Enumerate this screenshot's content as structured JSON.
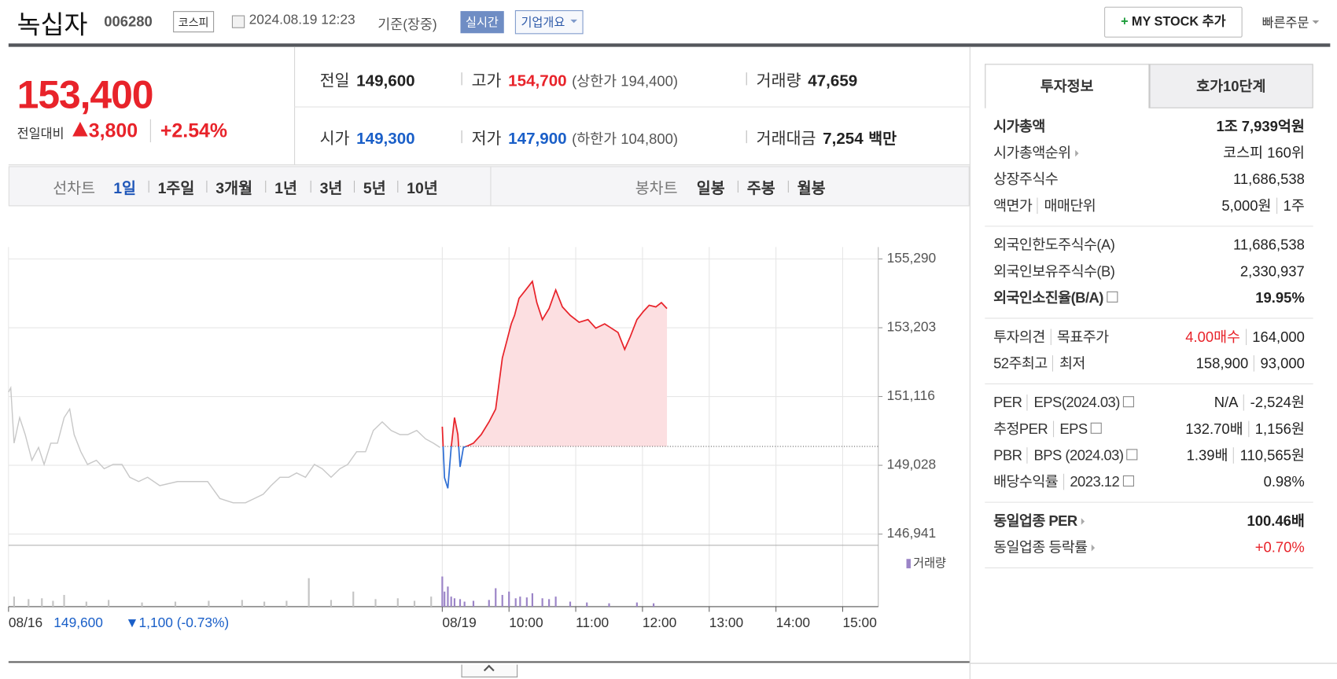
{
  "header": {
    "name": "녹십자",
    "code": "006280",
    "market": "코스피",
    "datetime": "2024.08.19 12:23",
    "basis": "기준(장중)",
    "realtime": "실시간",
    "company_info": "기업개요",
    "my_stock": "MY STOCK 추가",
    "quick_order": "빠른주문"
  },
  "quote": {
    "price": "153,400",
    "change_label": "전일대비",
    "change": "3,800",
    "change_pct": "+2.54%",
    "stats": [
      {
        "label": "전일",
        "value": "149,600"
      },
      {
        "label": "고가",
        "value": "154,700",
        "note": "(상한가 194,400)",
        "color": "#e8232a"
      },
      {
        "label": "거래량",
        "value": "47,659"
      },
      {
        "label": "시가",
        "value": "149,300",
        "color": "#1a5fc8"
      },
      {
        "label": "저가",
        "value": "147,900",
        "note": "(하한가 104,800)",
        "color": "#1a5fc8"
      },
      {
        "label": "거래대금",
        "value": "7,254",
        "unit": "백만"
      }
    ]
  },
  "chart_tabs": {
    "line_label": "선차트",
    "line": [
      "1일",
      "1주일",
      "3개월",
      "1년",
      "3년",
      "5년",
      "10년"
    ],
    "selected": 0,
    "candle_label": "봉차트",
    "candle": [
      "일봉",
      "주봉",
      "월봉"
    ]
  },
  "chart_data": {
    "type": "line",
    "baseline": 149600,
    "grid": true,
    "ylim": [
      146600,
      155650
    ],
    "yticks": [
      {
        "value": 155290,
        "label": "155,290"
      },
      {
        "value": 153203,
        "label": "153,203"
      },
      {
        "value": 151116,
        "label": "151,116"
      },
      {
        "value": 149028,
        "label": "149,028"
      },
      {
        "value": 146941,
        "label": "146,941"
      }
    ],
    "xlim": [
      -390,
      392
    ],
    "xticks": [
      {
        "value": -390,
        "label": "08/16"
      },
      {
        "value": 0,
        "label": "08/19"
      },
      {
        "value": 60,
        "label": "10:00"
      },
      {
        "value": 120,
        "label": "11:00"
      },
      {
        "value": 180,
        "label": "12:00"
      },
      {
        "value": 240,
        "label": "13:00"
      },
      {
        "value": 300,
        "label": "14:00"
      },
      {
        "value": 360,
        "label": "15:00"
      }
    ],
    "series": [
      {
        "color": "#c8c8c8",
        "x": [
          -390,
          -388,
          -385,
          -380,
          -375,
          -369,
          -363,
          -358,
          -352,
          -346,
          -340,
          -335,
          -331,
          -325,
          -319,
          -311,
          -304,
          -296,
          -288,
          -281,
          -273,
          -265,
          -254,
          -238,
          -223,
          -211,
          -200,
          -188,
          -177,
          -169,
          -161,
          -154,
          -146,
          -138,
          -131,
          -123,
          -115,
          -108,
          -100,
          -92,
          -85,
          -77,
          -69,
          -62,
          -54,
          -46,
          -38,
          -31,
          -23,
          -15,
          -8,
          -2
        ],
        "values": [
          151250,
          151380,
          149700,
          150475,
          149960,
          149180,
          149570,
          149055,
          149700,
          149700,
          150475,
          150735,
          149960,
          149440,
          149055,
          149180,
          148925,
          149055,
          149055,
          148665,
          148535,
          148665,
          148410,
          148535,
          148535,
          148535,
          148020,
          147890,
          147890,
          148020,
          148150,
          148410,
          148665,
          148665,
          148795,
          148665,
          149055,
          148925,
          148665,
          148925,
          149055,
          149440,
          149440,
          150085,
          150345,
          150085,
          149960,
          149960,
          150085,
          149830,
          149700,
          149570
        ]
      },
      {
        "color": "#e8232a",
        "color_down": "#2f6fd4",
        "fill": "#fcdfe1",
        "x": [
          0,
          2,
          5,
          8,
          11,
          14,
          16,
          19,
          23,
          28,
          35,
          42,
          48,
          51,
          54,
          58,
          62,
          65,
          69,
          75,
          81,
          85,
          90,
          96,
          102,
          108,
          115,
          123,
          131,
          138,
          146,
          152,
          158,
          164,
          169,
          175,
          181,
          186,
          192,
          197,
          202
        ],
        "values": [
          150200,
          148650,
          148330,
          149570,
          150475,
          149960,
          148980,
          149570,
          149620,
          149700,
          149960,
          150345,
          150735,
          151510,
          152285,
          152800,
          153320,
          153580,
          154095,
          154350,
          154610,
          153965,
          153450,
          153785,
          154350,
          153835,
          153580,
          153370,
          153450,
          153190,
          153320,
          153190,
          153060,
          152545,
          152930,
          153450,
          153705,
          153885,
          153835,
          153965,
          153785
        ]
      }
    ],
    "volume": {
      "name": "거래량",
      "color": "#9b84c7",
      "prior_color": "#c4c4c4",
      "ylim": [
        0,
        3000
      ],
      "x": [
        -385,
        -372,
        -360,
        -350,
        -340,
        -320,
        -300,
        -270,
        -240,
        -210,
        -180,
        -160,
        -140,
        -120,
        -100,
        -80,
        -60,
        -40,
        -25,
        -10,
        0,
        2,
        5,
        8,
        11,
        16,
        20,
        28,
        42,
        48,
        54,
        60,
        66,
        70,
        76,
        81,
        90,
        96,
        102,
        115,
        130,
        150,
        175,
        190
      ],
      "values": [
        600,
        450,
        500,
        350,
        700,
        300,
        400,
        250,
        300,
        350,
        400,
        300,
        350,
        1700,
        400,
        900,
        450,
        500,
        350,
        600,
        1800,
        900,
        1200,
        600,
        500,
        450,
        300,
        350,
        400,
        1100,
        700,
        900,
        500,
        600,
        550,
        800,
        500,
        450,
        600,
        300,
        250,
        200,
        250,
        200
      ]
    },
    "annotations": [
      {
        "text": "149,600",
        "color": "#1a5fc8"
      },
      {
        "text": "▼1,100 (-0.73%)",
        "color": "#1a5fc8"
      }
    ]
  },
  "side": {
    "tabs": [
      "투자정보",
      "호가10단계"
    ],
    "groups": [
      [
        {
          "label": [
            "시가총액"
          ],
          "value": [
            "1조 7,939억원"
          ],
          "bold": true
        },
        {
          "label": [
            "시가총액순위"
          ],
          "arrow": true,
          "value": [
            "코스피 160위"
          ]
        },
        {
          "label": [
            "상장주식수"
          ],
          "value": [
            "11,686,538"
          ]
        },
        {
          "label": [
            "액면가",
            "매매단위"
          ],
          "value": [
            "5,000원",
            "1주"
          ]
        }
      ],
      [
        {
          "label": [
            "외국인한도주식수(A)"
          ],
          "value": [
            "11,686,538"
          ]
        },
        {
          "label": [
            "외국인보유주식수(B)"
          ],
          "value": [
            "2,330,937"
          ]
        },
        {
          "label": [
            "외국인소진율(B/A)"
          ],
          "help": true,
          "value": [
            "19.95%"
          ],
          "bold": true
        }
      ],
      [
        {
          "label": [
            "투자의견",
            "목표주가"
          ],
          "value": [
            "4.00매수",
            "164,000"
          ],
          "color": "#e8232a"
        },
        {
          "label": [
            "52주최고",
            "최저"
          ],
          "value": [
            "158,900",
            "93,000"
          ]
        }
      ],
      [
        {
          "label": [
            "PER",
            "EPS(2024.03)"
          ],
          "help": true,
          "value": [
            "N/A",
            "-2,524원"
          ]
        },
        {
          "label": [
            "추정PER",
            "EPS"
          ],
          "help": true,
          "value": [
            "132.70배",
            "1,156원"
          ]
        },
        {
          "label": [
            "PBR",
            "BPS (2024.03)"
          ],
          "help": true,
          "value": [
            "1.39배",
            "110,565원"
          ]
        },
        {
          "label": [
            "배당수익률",
            "2023.12"
          ],
          "help": true,
          "value": [
            "0.98%"
          ]
        }
      ],
      [
        {
          "label": [
            "동일업종 PER"
          ],
          "arrow": true,
          "value": [
            "100.46배"
          ],
          "bold": true
        },
        {
          "label": [
            "동일업종 등락률"
          ],
          "arrow": true,
          "value": [
            "+0.70%"
          ],
          "color": "#e8232a"
        }
      ]
    ]
  }
}
